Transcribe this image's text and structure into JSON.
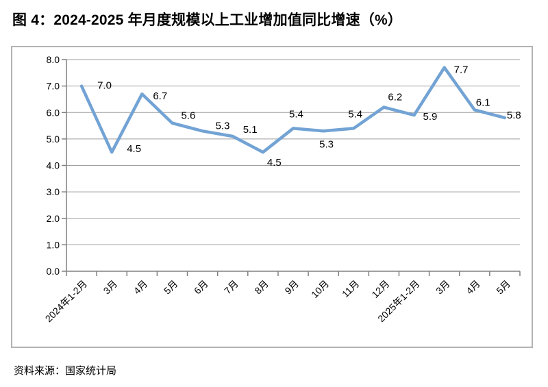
{
  "page": {
    "title": "图 4：2024-2025 年月度规模以上工业增加值同比增速（%）",
    "source_note": "资料来源：国家统计局"
  },
  "chart_data": {
    "type": "line",
    "title": "2024-2025 年月度规模以上工业增加值同比增速（%）",
    "categories": [
      "2024年1-2月",
      "3月",
      "4月",
      "5月",
      "6月",
      "7月",
      "8月",
      "9月",
      "10月",
      "11月",
      "12月",
      "2025年1-2月",
      "3月",
      "4月",
      "5月"
    ],
    "values": [
      7.0,
      4.5,
      6.7,
      5.6,
      5.3,
      5.1,
      4.5,
      5.4,
      5.3,
      5.4,
      6.2,
      5.9,
      7.7,
      6.1,
      5.8
    ],
    "data_labels": [
      "7.0",
      "4.5",
      "6.7",
      "5.6",
      "5.3",
      "5.1",
      "4.5",
      "5.4",
      "5.3",
      "5.4",
      "6.2",
      "5.9",
      "7.7",
      "6.1",
      "5.8"
    ],
    "xlabel": "",
    "ylabel": "",
    "ylim": [
      0.0,
      8.0
    ],
    "ytick_step": 1.0,
    "ytick_labels": [
      "0.0",
      "1.0",
      "2.0",
      "3.0",
      "4.0",
      "5.0",
      "6.0",
      "7.0",
      "8.0"
    ],
    "grid": true,
    "legend": false,
    "colors": {
      "line": "#72a3d4",
      "gridline": "#9e9e9e",
      "axis": "#808080",
      "label_text": "#000000",
      "box_border": "#b3b3b3"
    }
  }
}
